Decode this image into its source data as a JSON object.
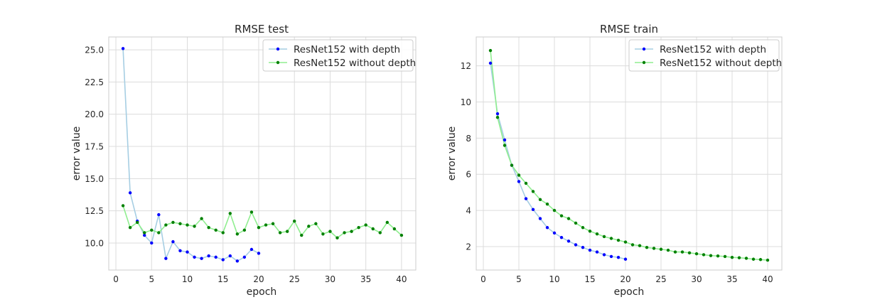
{
  "chart_data": [
    {
      "type": "line",
      "title": "RMSE test",
      "xlabel": "epoch",
      "ylabel": "error value",
      "xlim": [
        -1,
        42
      ],
      "ylim": [
        7.9,
        26.0
      ],
      "xticks": [
        0,
        5,
        10,
        15,
        20,
        25,
        30,
        35,
        40
      ],
      "yticks": [
        10.0,
        12.5,
        15.0,
        17.5,
        20.0,
        22.5,
        25.0
      ],
      "ytick_labels": [
        "10.0",
        "12.5",
        "15.0",
        "17.5",
        "20.0",
        "22.5",
        "25.0"
      ],
      "grid": true,
      "legend_position": "top-right",
      "series": [
        {
          "name": "ResNet152 with depth",
          "line_color": "#a6cee3",
          "marker_color": "#0000ff",
          "x": [
            1,
            2,
            3,
            4,
            5,
            6,
            7,
            8,
            9,
            10,
            11,
            12,
            13,
            14,
            15,
            16,
            17,
            18,
            19,
            20
          ],
          "y": [
            25.1,
            13.9,
            11.7,
            10.6,
            10.0,
            12.2,
            8.8,
            10.1,
            9.4,
            9.3,
            8.9,
            8.8,
            9.0,
            8.9,
            8.7,
            9.0,
            8.6,
            8.9,
            9.5,
            9.2
          ]
        },
        {
          "name": "ResNet152 without depth",
          "line_color": "#90ee90",
          "marker_color": "#008000",
          "x": [
            1,
            2,
            3,
            4,
            5,
            6,
            7,
            8,
            9,
            10,
            11,
            12,
            13,
            14,
            15,
            16,
            17,
            18,
            19,
            20,
            21,
            22,
            23,
            24,
            25,
            26,
            27,
            28,
            29,
            30,
            31,
            32,
            33,
            34,
            35,
            36,
            37,
            38,
            39,
            40
          ],
          "y": [
            12.9,
            11.2,
            11.6,
            10.8,
            11.0,
            10.8,
            11.4,
            11.6,
            11.5,
            11.4,
            11.3,
            11.9,
            11.2,
            11.0,
            10.8,
            12.3,
            10.7,
            11.0,
            12.4,
            11.2,
            11.4,
            11.5,
            10.8,
            10.9,
            11.7,
            10.6,
            11.3,
            11.5,
            10.7,
            10.9,
            10.4,
            10.8,
            10.9,
            11.2,
            11.4,
            11.1,
            10.8,
            11.6,
            11.1,
            10.6
          ]
        }
      ]
    },
    {
      "type": "line",
      "title": "RMSE train",
      "xlabel": "epoch",
      "ylabel": "error value",
      "xlim": [
        -1,
        42
      ],
      "ylim": [
        0.7,
        13.6
      ],
      "xticks": [
        0,
        5,
        10,
        15,
        20,
        25,
        30,
        35,
        40
      ],
      "yticks": [
        2,
        4,
        6,
        8,
        10,
        12
      ],
      "ytick_labels": [
        "2",
        "4",
        "6",
        "8",
        "10",
        "12"
      ],
      "grid": true,
      "legend_position": "top-right",
      "series": [
        {
          "name": "ResNet152 with depth",
          "line_color": "#a6cee3",
          "marker_color": "#0000ff",
          "x": [
            1,
            2,
            3,
            4,
            5,
            6,
            7,
            8,
            9,
            10,
            11,
            12,
            13,
            14,
            15,
            16,
            17,
            18,
            19,
            20
          ],
          "y": [
            12.15,
            9.35,
            7.9,
            6.5,
            5.6,
            4.65,
            4.05,
            3.55,
            3.05,
            2.75,
            2.5,
            2.3,
            2.1,
            1.95,
            1.8,
            1.7,
            1.55,
            1.45,
            1.4,
            1.3
          ]
        },
        {
          "name": "ResNet152 without depth",
          "line_color": "#90ee90",
          "marker_color": "#008000",
          "x": [
            1,
            2,
            3,
            4,
            5,
            6,
            7,
            8,
            9,
            10,
            11,
            12,
            13,
            14,
            15,
            16,
            17,
            18,
            19,
            20,
            21,
            22,
            23,
            24,
            25,
            26,
            27,
            28,
            29,
            30,
            31,
            32,
            33,
            34,
            35,
            36,
            37,
            38,
            39,
            40
          ],
          "y": [
            12.85,
            9.15,
            7.6,
            6.5,
            5.95,
            5.5,
            5.05,
            4.6,
            4.35,
            4.0,
            3.7,
            3.55,
            3.3,
            3.05,
            2.85,
            2.7,
            2.55,
            2.45,
            2.35,
            2.25,
            2.1,
            2.05,
            1.95,
            1.9,
            1.85,
            1.8,
            1.7,
            1.7,
            1.65,
            1.6,
            1.55,
            1.5,
            1.48,
            1.45,
            1.4,
            1.38,
            1.35,
            1.3,
            1.28,
            1.25
          ]
        }
      ]
    }
  ]
}
